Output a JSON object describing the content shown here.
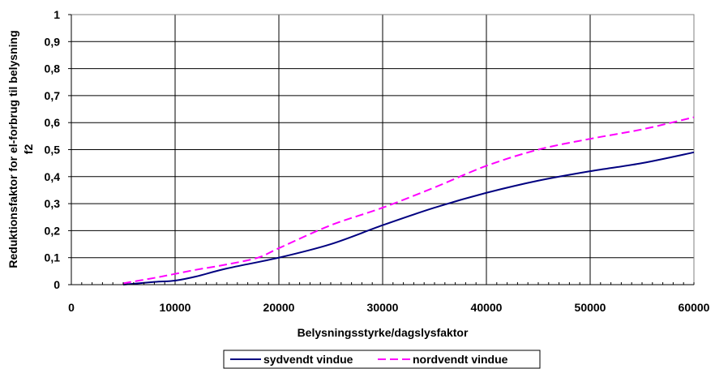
{
  "chart_data": {
    "type": "line",
    "title": "",
    "xlabel": "Belysningsstyrke/dagslysfaktor",
    "ylabel_lines": [
      "Reduktionsfaktor for el-forbrug til belysning",
      "f2"
    ],
    "xlim": [
      0,
      60000
    ],
    "ylim": [
      0,
      1
    ],
    "x_ticks": [
      0,
      10000,
      20000,
      30000,
      40000,
      50000,
      60000
    ],
    "x_tick_labels": [
      "0",
      "10000",
      "20000",
      "30000",
      "40000",
      "50000",
      "60000"
    ],
    "y_ticks": [
      0,
      0.1,
      0.2,
      0.3,
      0.4,
      0.5,
      0.6,
      0.7,
      0.8,
      0.9,
      1
    ],
    "y_tick_labels": [
      "0",
      "0,1",
      "0,2",
      "0,3",
      "0,4",
      "0,5",
      "0,6",
      "0,7",
      "0,8",
      "0,9",
      "1"
    ],
    "grid": true,
    "legend_position": "bottom-center",
    "series": [
      {
        "name": "sydvendt vindue",
        "color": "#000080",
        "dash": "solid",
        "x": [
          5000,
          8000,
          10000,
          12000,
          15000,
          20000,
          25000,
          30000,
          35000,
          40000,
          45000,
          50000,
          55000,
          60000
        ],
        "y": [
          0.0,
          0.01,
          0.015,
          0.03,
          0.06,
          0.1,
          0.15,
          0.22,
          0.285,
          0.34,
          0.385,
          0.42,
          0.45,
          0.49
        ]
      },
      {
        "name": "nordvendt vindue",
        "color": "#FF00FF",
        "dash": "dashed",
        "x": [
          5000,
          8000,
          10000,
          12000,
          15000,
          18000,
          20000,
          25000,
          30000,
          35000,
          40000,
          45000,
          50000,
          55000,
          60000
        ],
        "y": [
          0.005,
          0.025,
          0.04,
          0.055,
          0.075,
          0.1,
          0.135,
          0.22,
          0.285,
          0.36,
          0.44,
          0.5,
          0.54,
          0.575,
          0.62
        ]
      }
    ]
  }
}
